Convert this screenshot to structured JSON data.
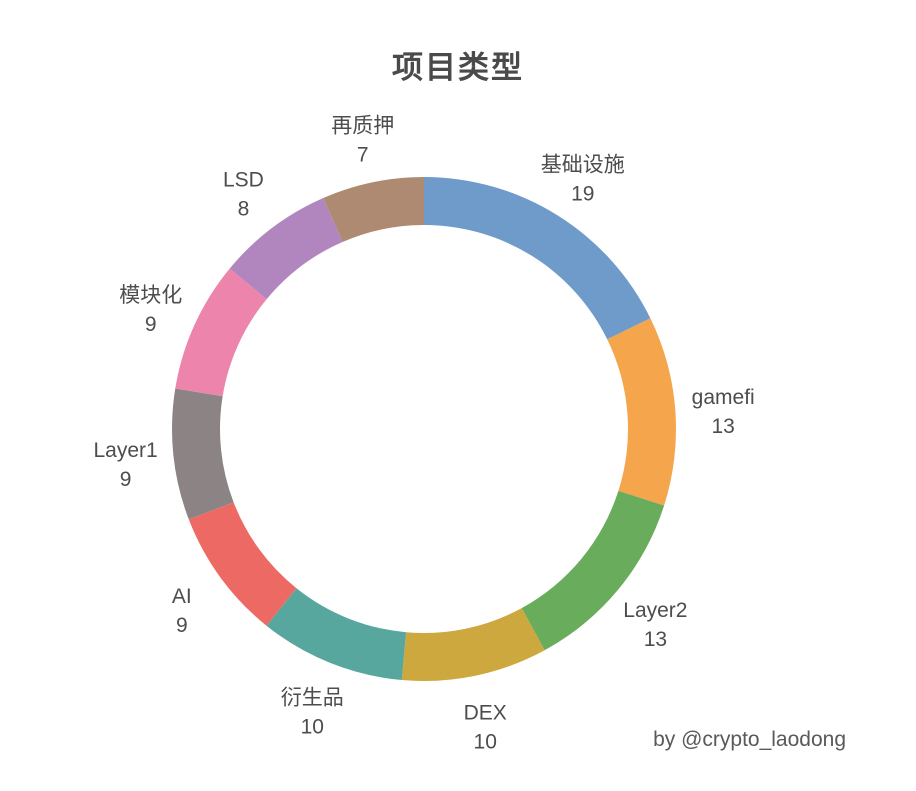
{
  "header": {
    "title": "项目类型"
  },
  "footer": {
    "attribution": "by @crypto_laodong"
  },
  "chart_data": {
    "type": "pie",
    "subtype": "donut",
    "title": "项目类型",
    "categories": [
      "基础设施",
      "gamefi",
      "Layer2",
      "DEX",
      "衍生品",
      "AI",
      "Layer1",
      "模块化",
      "LSD",
      "再质押"
    ],
    "values": [
      19,
      13,
      13,
      10,
      10,
      9,
      9,
      9,
      8,
      7
    ],
    "colors": [
      "#6F9BCB",
      "#F5A54C",
      "#69AC5B",
      "#CDA83E",
      "#58A79E",
      "#ED6A64",
      "#8C8384",
      "#EC84AB",
      "#B186BE",
      "#AF8A72"
    ],
    "total": 107,
    "start_angle": "top",
    "direction": "clockwise",
    "legend_position": "none",
    "label_style": "outside, category name above value",
    "label_color": "#4d4d4d",
    "background": "#ffffff"
  }
}
